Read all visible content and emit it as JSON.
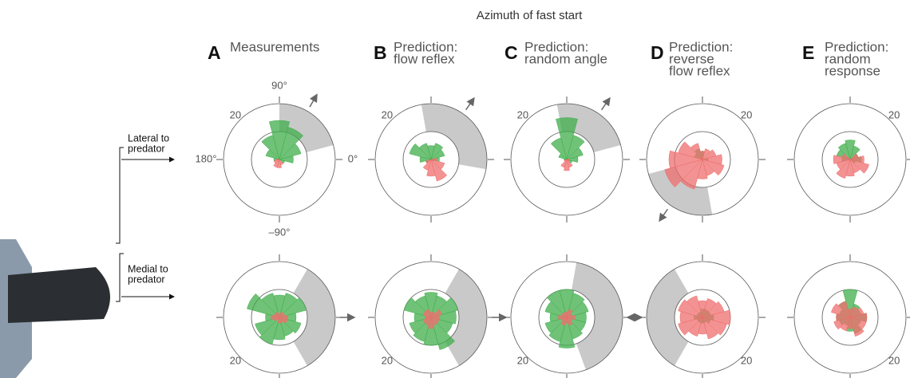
{
  "heading": "Azimuth of fast start",
  "rows": [
    {
      "label_lines": [
        "Lateral to",
        "predator"
      ]
    },
    {
      "label_lines": [
        "Medial to",
        "predator"
      ]
    }
  ],
  "polar": {
    "rlim": [
      0,
      20
    ],
    "rgrid": [
      10,
      20
    ],
    "bin_width": 30,
    "bin_centers": [
      0,
      30,
      60,
      90,
      120,
      150,
      180,
      210,
      240,
      270,
      300,
      330
    ],
    "thetaticks": [
      {
        "value": 90,
        "label": "90°"
      },
      {
        "value": 180,
        "label": "180°"
      },
      {
        "value": 0,
        "label": "0°"
      },
      {
        "value": -90,
        "label": "–90°"
      }
    ],
    "colors": {
      "green": "#3fae4a",
      "red": "#ef6d6d",
      "sector": "#c9c9c9"
    }
  },
  "panels": [
    {
      "letter": "A",
      "title_lines": [
        "Measurements"
      ],
      "plots": [
        {
          "green": [
            5,
            8,
            12,
            14,
            9,
            5,
            2,
            0,
            0,
            0,
            0,
            2
          ],
          "red": [
            0,
            0,
            0,
            0,
            0,
            0,
            1,
            2,
            3,
            3,
            2,
            0
          ],
          "sector": [
            15,
            90
          ],
          "arrow": 60
        },
        {
          "green": [
            6,
            10,
            9,
            8,
            9,
            12,
            5,
            9,
            10,
            8,
            7,
            8
          ],
          "red": [
            3,
            2,
            2,
            1,
            2,
            2,
            3,
            2,
            1,
            2,
            2,
            3
          ],
          "sector": [
            -60,
            60
          ],
          "arrow": 0
        }
      ]
    },
    {
      "letter": "B",
      "title_lines": [
        "Prediction:",
        "flow reflex"
      ],
      "plots": [
        {
          "green": [
            3,
            5,
            6,
            5,
            6,
            8,
            4,
            2,
            0,
            0,
            0,
            1
          ],
          "red": [
            2,
            0,
            0,
            0,
            0,
            0,
            0,
            2,
            4,
            6,
            8,
            5
          ],
          "sector": [
            -10,
            100
          ],
          "arrow": 55
        },
        {
          "green": [
            9,
            10,
            8,
            9,
            8,
            10,
            6,
            8,
            9,
            10,
            12,
            8
          ],
          "red": [
            3,
            4,
            2,
            2,
            3,
            3,
            2,
            3,
            3,
            4,
            3,
            3
          ],
          "sector": [
            -60,
            60
          ],
          "arrow": 0
        }
      ]
    },
    {
      "letter": "C",
      "title_lines": [
        "Prediction:",
        "random angle"
      ],
      "plots": [
        {
          "green": [
            4,
            6,
            9,
            15,
            8,
            3,
            1,
            0,
            0,
            0,
            0,
            2
          ],
          "red": [
            1,
            0,
            0,
            0,
            0,
            0,
            0,
            1,
            3,
            4,
            3,
            1
          ],
          "sector": [
            15,
            100
          ],
          "arrow": 55
        },
        {
          "green": [
            7,
            8,
            9,
            10,
            10,
            8,
            6,
            8,
            9,
            11,
            8,
            7
          ],
          "red": [
            3,
            2,
            3,
            2,
            2,
            2,
            3,
            2,
            3,
            2,
            3,
            2
          ],
          "sector": [
            -70,
            80
          ],
          "arrow": 0
        }
      ]
    },
    {
      "letter": "D",
      "title_lines": [
        "Prediction:",
        "reverse",
        "flow reflex"
      ],
      "plots": [
        {
          "green": [
            2,
            0,
            0,
            3,
            4,
            3,
            0,
            0,
            0,
            0,
            0,
            0
          ],
          "red": [
            7,
            5,
            4,
            3,
            6,
            9,
            12,
            14,
            11,
            7,
            6,
            8
          ],
          "sector": [
            195,
            280
          ],
          "arrow": 235
        },
        {
          "green": [
            4,
            3,
            3,
            3,
            2,
            2,
            3,
            2,
            2,
            2,
            2,
            3
          ],
          "red": [
            10,
            8,
            7,
            6,
            8,
            9,
            8,
            9,
            7,
            6,
            8,
            9
          ],
          "sector": [
            120,
            240
          ],
          "arrow": 180
        }
      ]
    },
    {
      "letter": "E",
      "title_lines": [
        "Prediction:",
        "random",
        "response"
      ],
      "plots": [
        {
          "green": [
            4,
            3,
            5,
            7,
            6,
            5,
            3,
            0,
            0,
            0,
            0,
            2
          ],
          "red": [
            5,
            3,
            0,
            0,
            0,
            3,
            6,
            5,
            7,
            6,
            5,
            7
          ]
        },
        {
          "green": [
            6,
            4,
            5,
            10,
            6,
            4,
            5,
            4,
            3,
            5,
            6,
            4
          ],
          "red": [
            6,
            5,
            4,
            3,
            6,
            7,
            5,
            6,
            5,
            4,
            7,
            6
          ]
        }
      ]
    }
  ]
}
